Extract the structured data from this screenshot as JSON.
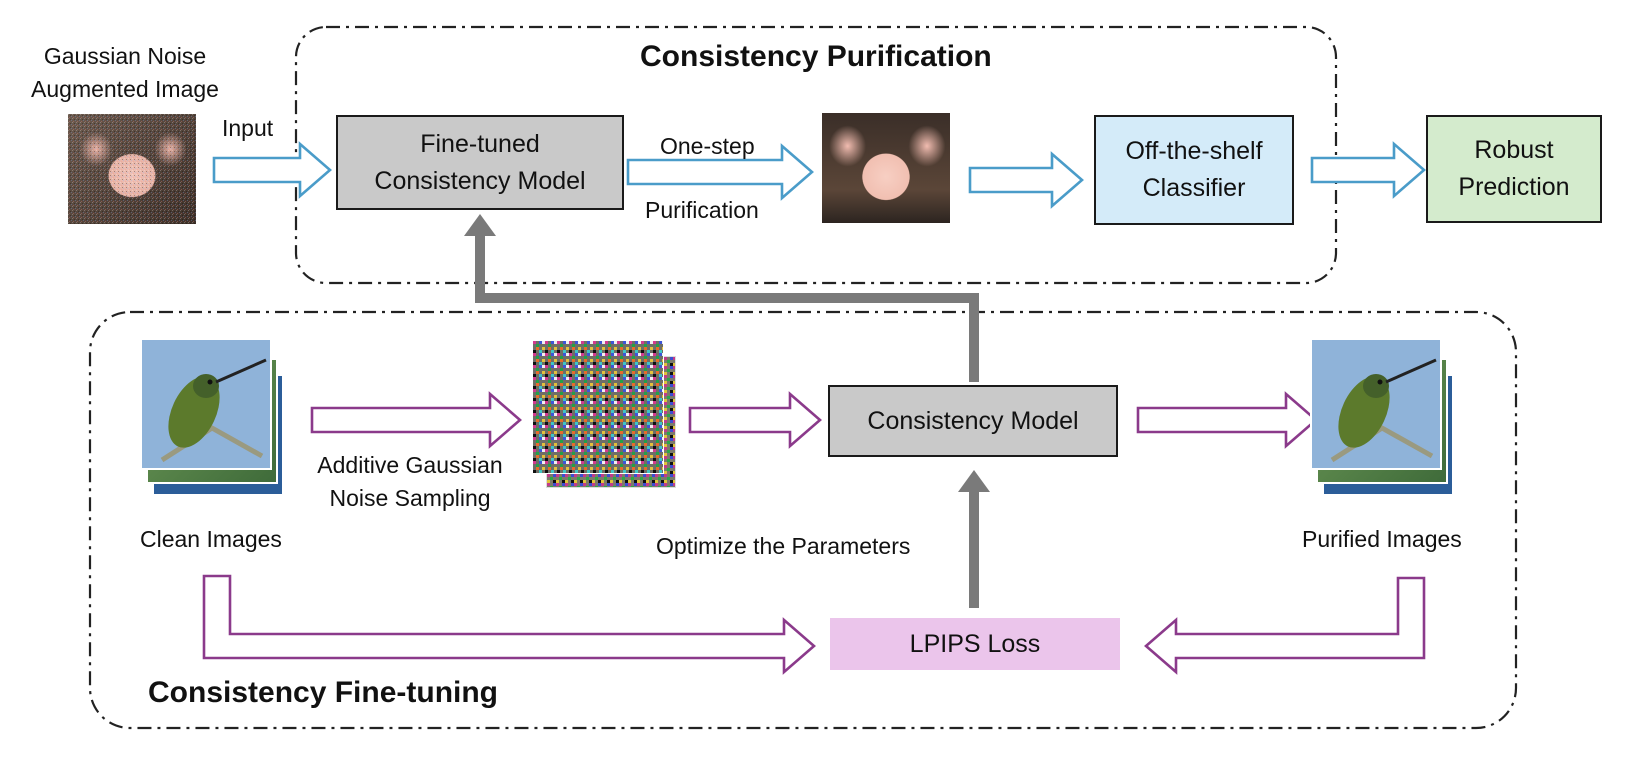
{
  "top_section": {
    "title": "Consistency Purification",
    "input_image_caption": [
      "Gaussian Noise",
      "Augmented Image"
    ],
    "input_arrow_label": "Input",
    "finetuned_model_box": [
      "Fine-tuned",
      "Consistency Model"
    ],
    "purify_arrow_label_top": "One-step",
    "purify_arrow_label_bottom": "Purification",
    "classifier_box": [
      "Off-the-shelf",
      "Classifier"
    ],
    "prediction_box": [
      "Robust",
      "Prediction"
    ]
  },
  "bottom_section": {
    "title": "Consistency Fine-tuning",
    "clean_images_caption": "Clean Images",
    "noise_arrow_label": [
      "Additive Gaussian",
      "Noise Sampling"
    ],
    "consistency_model_box": "Consistency Model",
    "purified_images_caption": "Purified Images",
    "optimize_label": "Optimize the Parameters",
    "loss_box": "LPIPS Loss"
  },
  "colors": {
    "blue_arrow": "#4a9cc9",
    "purple_arrow": "#8b3a8b",
    "gray_arrow": "#7a7a7a",
    "model_box_fill": "#c9c9c9",
    "classifier_fill": "#d4ebf9",
    "prediction_fill": "#d4ebcd",
    "loss_fill": "#ebc5eb"
  },
  "icons": [
    "noisy-pig-image",
    "clean-pig-image",
    "hummingbird-image",
    "noise-image"
  ]
}
